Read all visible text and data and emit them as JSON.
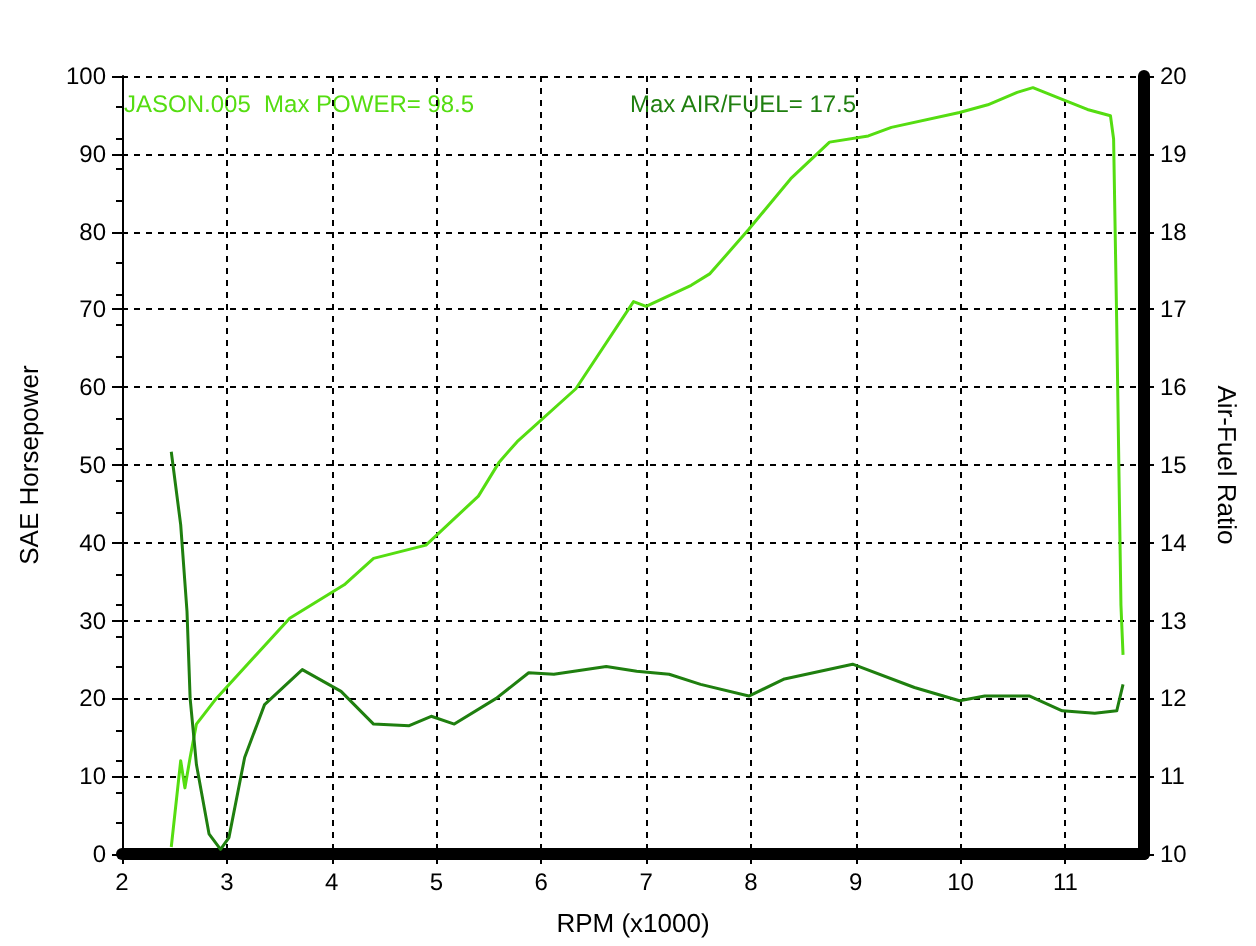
{
  "chart_data": {
    "type": "line",
    "xlabel": "RPM (x1000)",
    "ylabel": "SAE Horsepower",
    "y2label": "Air-Fuel Ratio",
    "annotations": [
      "JASON.005  Max POWER= 98.5",
      "Max AIR/FUEL= 17.5"
    ],
    "xlim": [
      2,
      11.75
    ],
    "xticks": [
      2,
      3,
      4,
      5,
      6,
      7,
      8,
      9,
      10,
      11
    ],
    "ylim": [
      0,
      100
    ],
    "yticks": [
      0,
      10,
      20,
      30,
      40,
      50,
      60,
      70,
      80,
      90,
      100
    ],
    "y2lim": [
      10,
      20
    ],
    "y2ticks": [
      10,
      11,
      12,
      13,
      14,
      15,
      16,
      17,
      18,
      19,
      20
    ],
    "grid": true,
    "marker": "none",
    "line_style": "solid",
    "series": [
      {
        "color": "#55dd11",
        "x": [
          2.47,
          2.56,
          2.6,
          2.65,
          2.71,
          2.9,
          3.6,
          4.12,
          4.4,
          4.9,
          5.4,
          5.6,
          5.77,
          6.33,
          6.88,
          7.0,
          7.43,
          7.61,
          7.98,
          8.38,
          8.75,
          9.12,
          9.34,
          9.99,
          10.26,
          10.54,
          10.69,
          10.97,
          11.21,
          11.43,
          11.46,
          11.49,
          11.53,
          11.55
        ],
        "values": [
          0.9,
          12,
          8.5,
          12.4,
          16.7,
          20,
          30.3,
          34.6,
          38,
          39.7,
          46,
          50.4,
          53,
          59.8,
          71,
          70.4,
          73.1,
          74.6,
          80.3,
          86.8,
          91.5,
          92.3,
          93.4,
          95.3,
          96.3,
          97.9,
          98.5,
          97,
          95.7,
          94.9,
          91.9,
          68,
          32,
          25.6
        ]
      },
      {
        "color": "#1f7f0f",
        "axis": "y2",
        "x": [
          2.47,
          2.56,
          2.62,
          2.65,
          2.71,
          2.83,
          2.94,
          3.02,
          3.17,
          3.36,
          3.72,
          4.09,
          4.4,
          4.74,
          4.95,
          5.17,
          5.57,
          5.88,
          6.12,
          6.62,
          6.91,
          7.22,
          7.52,
          7.98,
          8.32,
          8.97,
          9.56,
          9.99,
          10.23,
          10.66,
          10.97,
          11.28,
          11.49,
          11.55
        ],
        "values": [
          15.17,
          14.23,
          13.12,
          12.0,
          11.15,
          10.26,
          10.06,
          10.21,
          11.24,
          11.92,
          12.37,
          12.09,
          11.67,
          11.65,
          11.77,
          11.67,
          12.0,
          12.33,
          12.31,
          12.41,
          12.35,
          12.31,
          12.18,
          12.03,
          12.25,
          12.44,
          12.14,
          11.97,
          12.03,
          12.03,
          11.84,
          11.81,
          11.84,
          12.18
        ]
      }
    ]
  }
}
